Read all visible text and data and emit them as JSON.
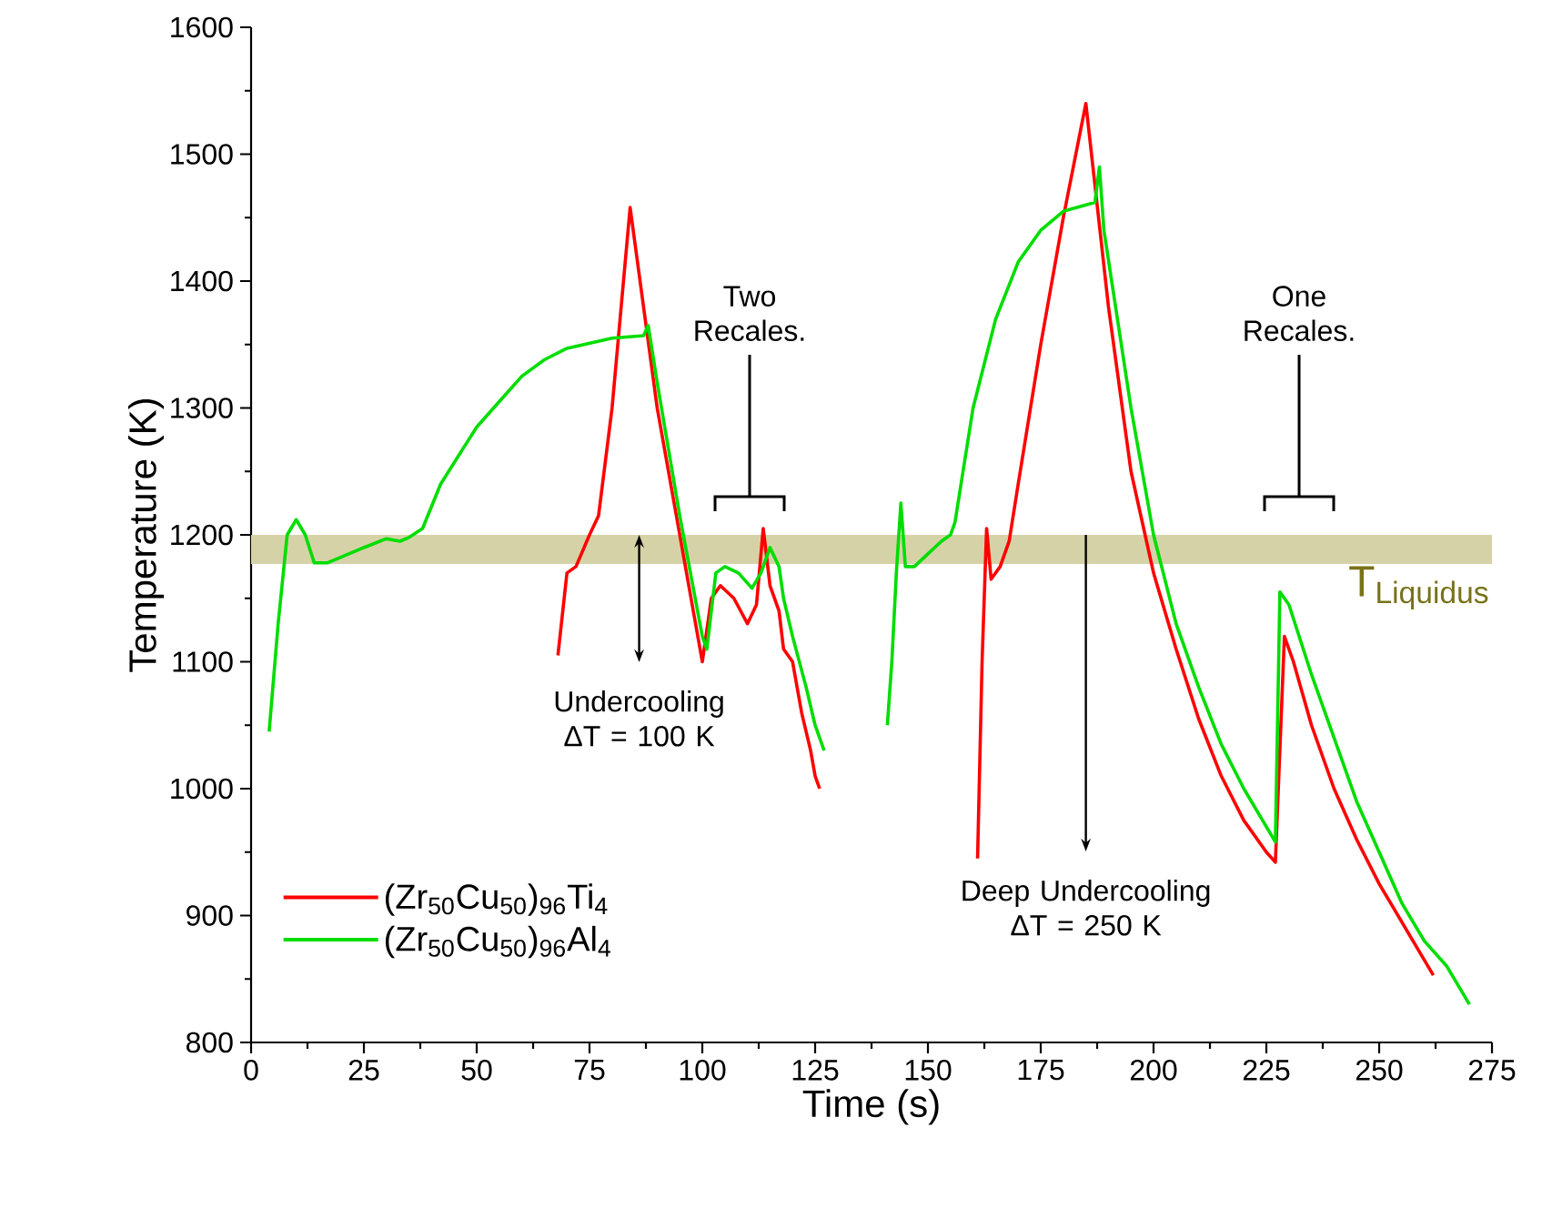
{
  "chart_data": {
    "type": "line",
    "xlabel": "Time (s)",
    "ylabel": "Temperature (K)",
    "xlim": [
      0,
      275
    ],
    "xticks": [
      0,
      25,
      50,
      75,
      100,
      125,
      150,
      175,
      200,
      225,
      250,
      275
    ],
    "ylim": [
      800,
      1600
    ],
    "yticks": [
      800,
      900,
      1000,
      1100,
      1200,
      1300,
      1400,
      1500,
      1600
    ],
    "grid": false,
    "legend": "bottom left",
    "marker": "none",
    "line_style": "solid",
    "series": [
      {
        "name": "(Zr$_{50}$Cu$_{50}$)$_{96}$Ti$_{4}$",
        "color": "#ff0000",
        "x": [
          68,
          70,
          72,
          75,
          77,
          80,
          84,
          90,
          95,
          100,
          102,
          104,
          107,
          110,
          112,
          113.5,
          115,
          117,
          118,
          120,
          122,
          124,
          125,
          126,
          140,
          161,
          162,
          163,
          164,
          166,
          168,
          170,
          175,
          180,
          185,
          190,
          195,
          200,
          205,
          210,
          215,
          220,
          225,
          227,
          229,
          231,
          235,
          240,
          245,
          250,
          255,
          260,
          262
        ],
        "values": [
          1105,
          1170,
          1175,
          1200,
          1215,
          1300,
          1458,
          1300,
          1200,
          1100,
          1150,
          1160,
          1150,
          1130,
          1145,
          1205,
          1160,
          1140,
          1110,
          1100,
          1060,
          1030,
          1010,
          1000,
          null,
          945,
          1100,
          1205,
          1165,
          1175,
          1195,
          1240,
          1350,
          1450,
          1540,
          1380,
          1250,
          1170,
          1110,
          1055,
          1010,
          975,
          950,
          942,
          1120,
          1100,
          1050,
          1000,
          960,
          925,
          895,
          865,
          853
        ]
      },
      {
        "name": "(Zr$_{50}$Cu$_{50}$)$_{96}$Al$_{4}$",
        "color": "#00dd00",
        "x": [
          4,
          6,
          8,
          10,
          12,
          14,
          17,
          25,
          30,
          33,
          35,
          38,
          42,
          50,
          55,
          60,
          65,
          70,
          80,
          87,
          88,
          90,
          95,
          100,
          101,
          103,
          105,
          108,
          111,
          113,
          115,
          117,
          118,
          120,
          123,
          125,
          127,
          134,
          141,
          142,
          143,
          144,
          145,
          147,
          150,
          153,
          155,
          156,
          160,
          165,
          170,
          175,
          180,
          187,
          188,
          189,
          195,
          200,
          205,
          210,
          215,
          220,
          225,
          227,
          228,
          230,
          235,
          240,
          245,
          250,
          255,
          260,
          265,
          270
        ],
        "values": [
          1045,
          1130,
          1200,
          1212,
          1200,
          1178,
          1178,
          1190,
          1197,
          1195,
          1198,
          1205,
          1240,
          1285,
          1305,
          1325,
          1338,
          1347,
          1355,
          1357,
          1365,
          1320,
          1215,
          1120,
          1110,
          1170,
          1175,
          1170,
          1158,
          1170,
          1190,
          1175,
          1150,
          1120,
          1080,
          1050,
          1030,
          null,
          1050,
          1100,
          1170,
          1225,
          1175,
          1175,
          1185,
          1195,
          1200,
          1210,
          1300,
          1370,
          1415,
          1440,
          1455,
          1462,
          1490,
          1440,
          1300,
          1200,
          1130,
          1080,
          1035,
          1000,
          970,
          958,
          1155,
          1145,
          1090,
          1040,
          990,
          950,
          910,
          880,
          860,
          830
        ]
      }
    ],
    "bands": [
      {
        "axis": "y",
        "from": 1177,
        "to": 1200,
        "label": "T$_{Liquidus}$",
        "color": "#d6d2a8"
      }
    ],
    "annotations": [
      {
        "text": "Undercooling ΔT = 100 K",
        "x": 86,
        "y": 1200
      },
      {
        "text": "Deep Undercooling ΔT = 250 K",
        "x": 185,
        "y": 1200
      },
      "Two Recales.",
      "One Recales."
    ]
  }
}
